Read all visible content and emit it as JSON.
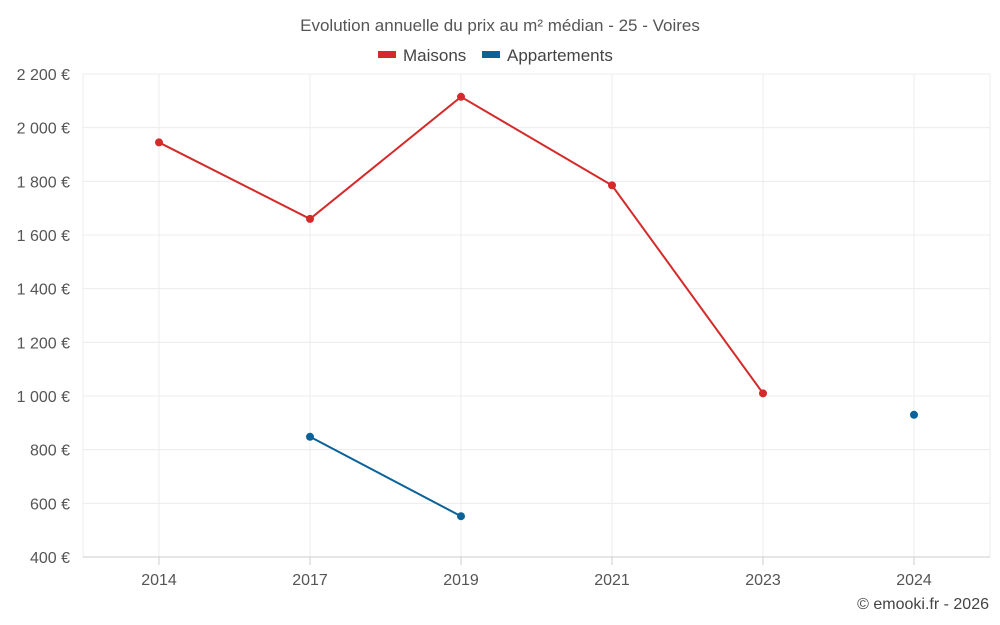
{
  "chart_data": {
    "type": "line",
    "title": "Evolution annuelle du prix au m² médian - 25 - Voires",
    "categories": [
      "2014",
      "2017",
      "2019",
      "2021",
      "2023",
      "2024"
    ],
    "y_tick_labels": [
      "400 €",
      "600 €",
      "800 €",
      "1 000 €",
      "1 200 €",
      "1 400 €",
      "1 600 €",
      "1 800 €",
      "2 000 €",
      "2 200 €"
    ],
    "y_ticks": [
      400,
      600,
      800,
      1000,
      1200,
      1400,
      1600,
      1800,
      2000,
      2200
    ],
    "ylim": [
      400,
      2200
    ],
    "xlabel": "",
    "ylabel": "",
    "grid": true,
    "legend_position": "top-center",
    "series": [
      {
        "name": "Maisons",
        "color": "#d42a2a",
        "values": [
          1945,
          1660,
          2115,
          1785,
          1010,
          null
        ]
      },
      {
        "name": "Appartements",
        "color": "#0a6299",
        "values": [
          null,
          848,
          552,
          null,
          null,
          930
        ]
      }
    ]
  },
  "credit": "© emooki.fr - 2026"
}
